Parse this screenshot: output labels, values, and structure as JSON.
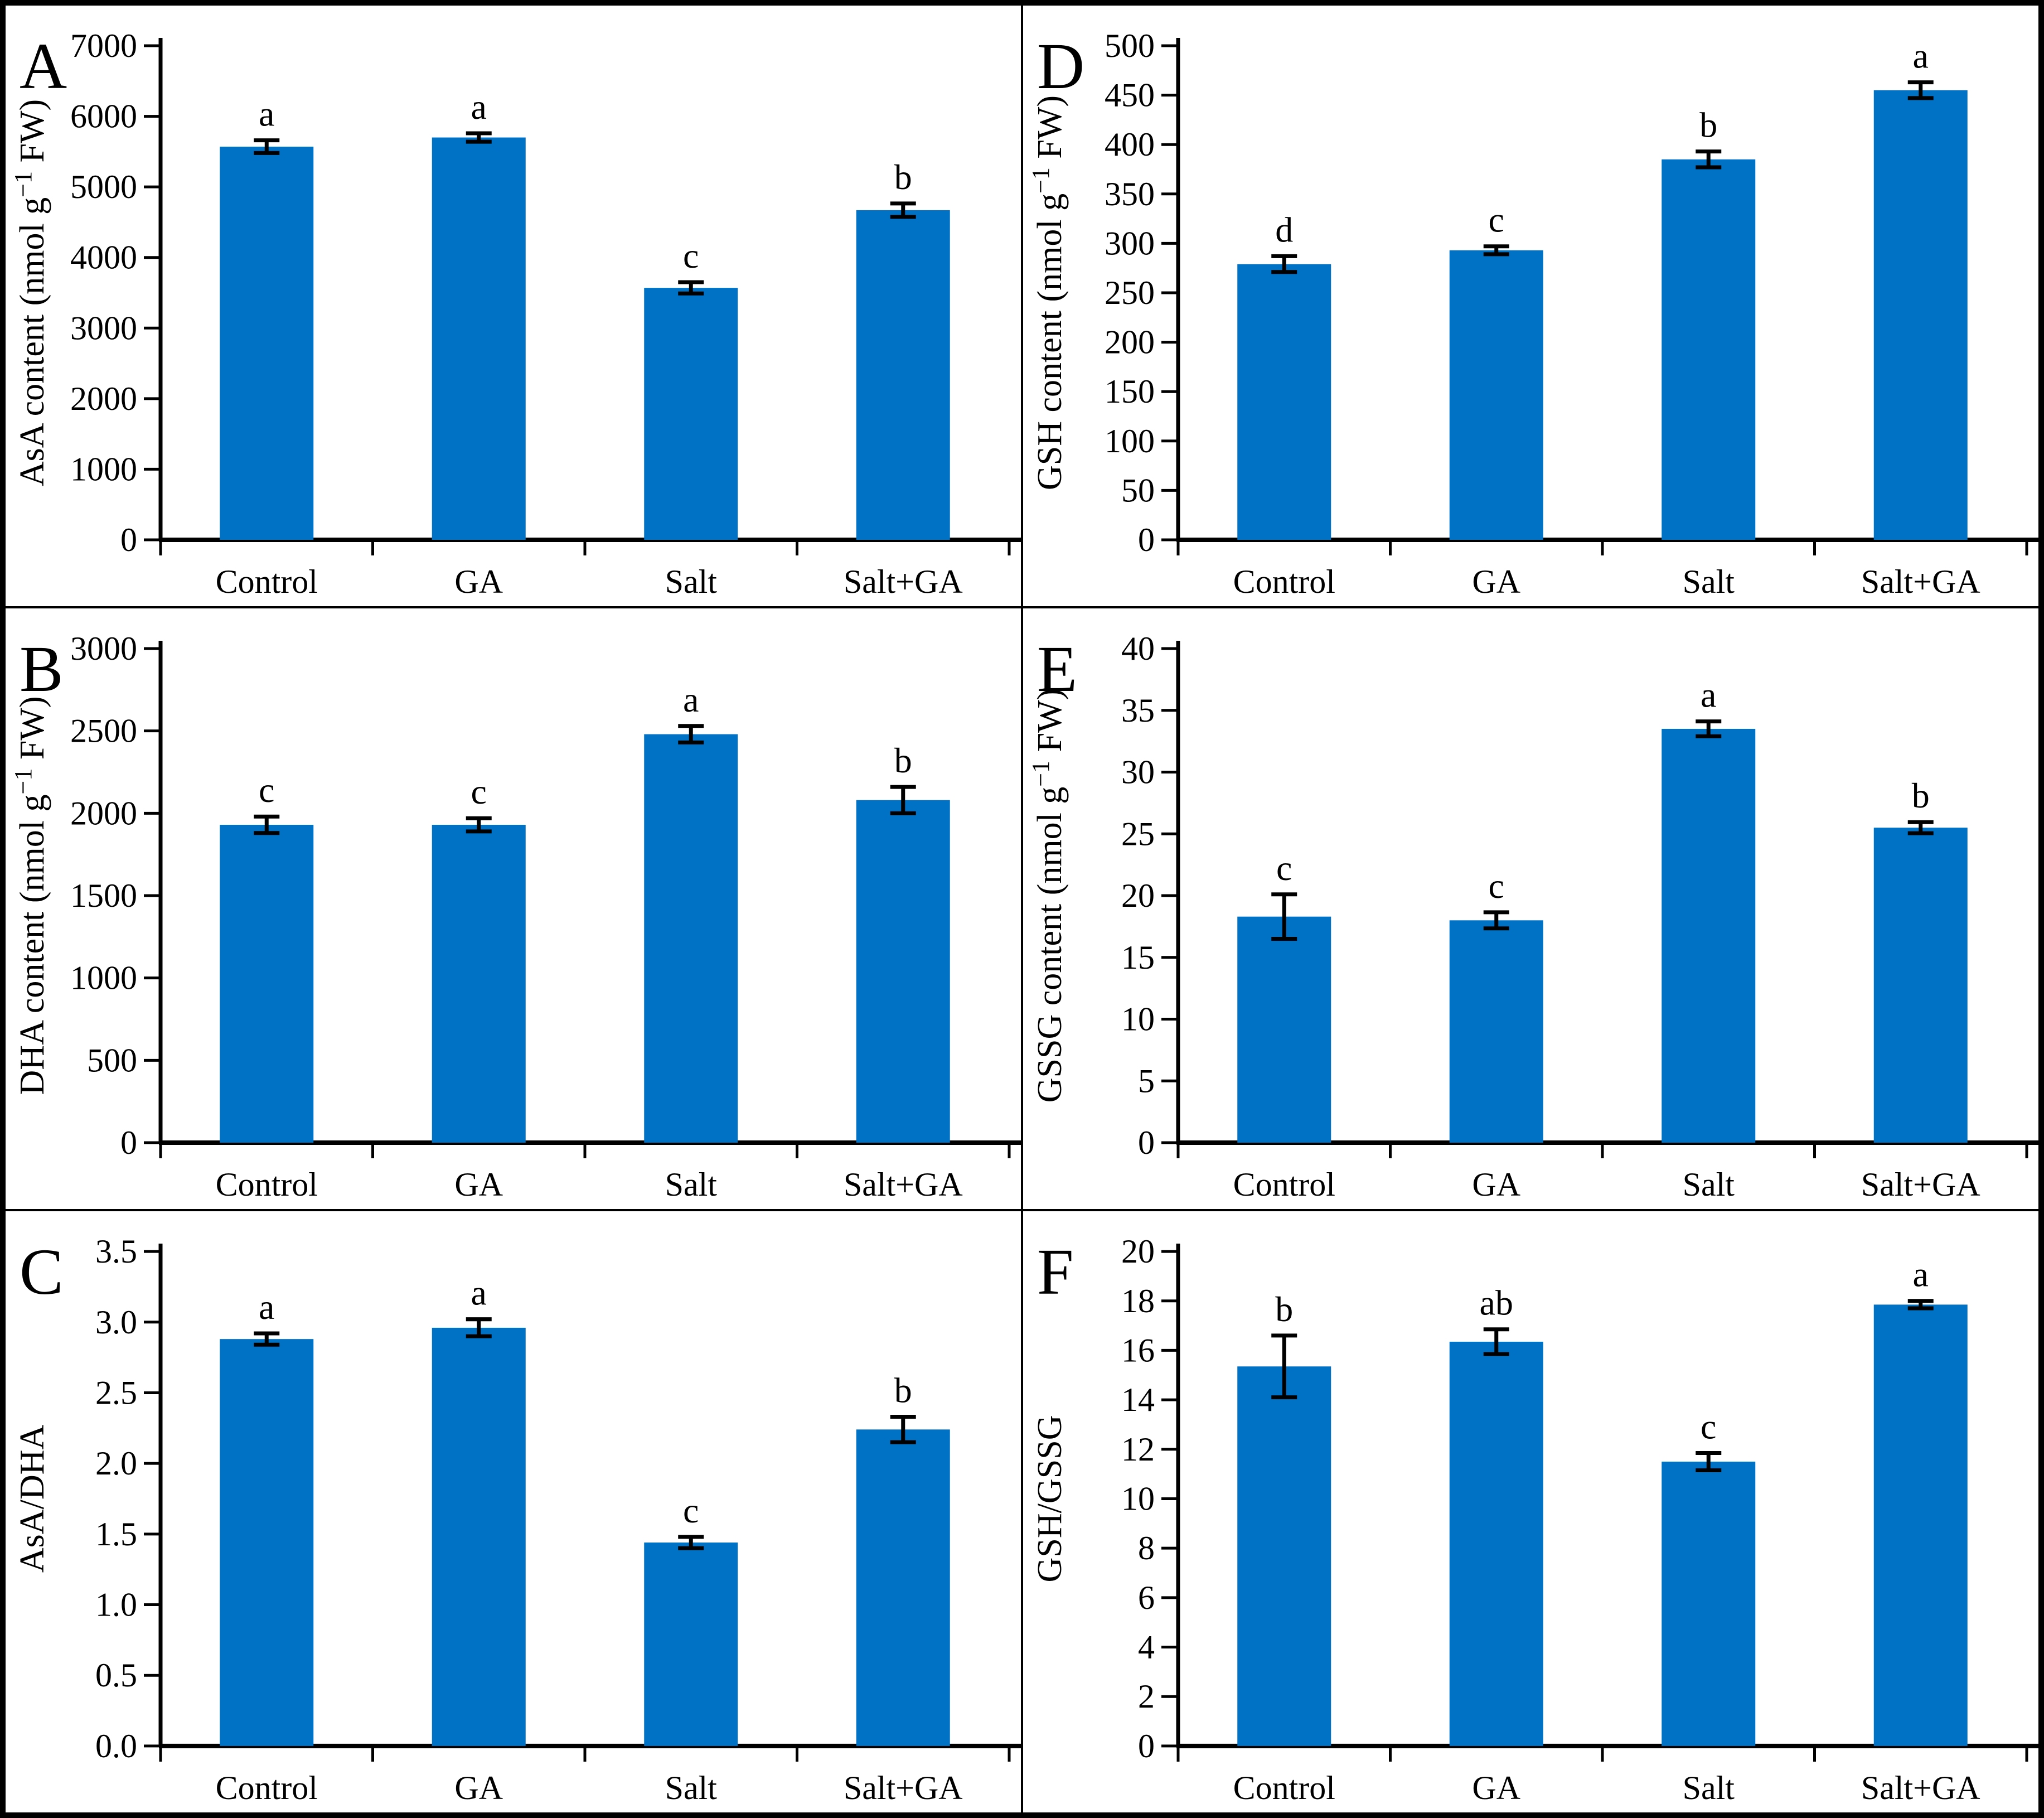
{
  "figure": {
    "background_color": "#ffffff",
    "border_color": "#000000",
    "bar_color": "#0072C6",
    "error_bar_color": "#000000",
    "categories": [
      "Control",
      "GA",
      "Salt",
      "Salt+GA"
    ]
  },
  "chart_data": [
    {
      "panel": "A",
      "type": "bar",
      "ylabel_segments": [
        {
          "text": "AsA content (nmol g"
        },
        {
          "text": "−1",
          "sup": true
        },
        {
          "text": " FW)"
        }
      ],
      "ylim": [
        0,
        7000
      ],
      "ytick_step": 1000,
      "ytick_decimals": 0,
      "grid": false,
      "categories": [
        "Control",
        "GA",
        "Salt",
        "Salt+GA"
      ],
      "values": [
        5570,
        5700,
        3570,
        4670
      ],
      "errors": [
        90,
        60,
        80,
        95
      ],
      "sig_letters": [
        "a",
        "a",
        "c",
        "b"
      ]
    },
    {
      "panel": "B",
      "type": "bar",
      "ylabel_segments": [
        {
          "text": "DHA content (nmol g"
        },
        {
          "text": "−1",
          "sup": true
        },
        {
          "text": " FW)"
        }
      ],
      "ylim": [
        0,
        3000
      ],
      "ytick_step": 500,
      "ytick_decimals": 0,
      "grid": false,
      "categories": [
        "Control",
        "GA",
        "Salt",
        "Salt+GA"
      ],
      "values": [
        1930,
        1930,
        2480,
        2080
      ],
      "errors": [
        50,
        40,
        50,
        80
      ],
      "sig_letters": [
        "c",
        "c",
        "a",
        "b"
      ]
    },
    {
      "panel": "C",
      "type": "bar",
      "ylabel_segments": [
        {
          "text": "AsA/DHA"
        }
      ],
      "ylim": [
        0,
        3.5
      ],
      "ytick_step": 0.5,
      "ytick_decimals": 1,
      "grid": false,
      "categories": [
        "Control",
        "GA",
        "Salt",
        "Salt+GA"
      ],
      "values": [
        2.88,
        2.96,
        1.44,
        2.24
      ],
      "errors": [
        0.04,
        0.06,
        0.04,
        0.09
      ],
      "sig_letters": [
        "a",
        "a",
        "c",
        "b"
      ]
    },
    {
      "panel": "D",
      "type": "bar",
      "ylabel_segments": [
        {
          "text": "GSH content (nmol g"
        },
        {
          "text": "−1",
          "sup": true
        },
        {
          "text": " FW)"
        }
      ],
      "ylim": [
        0,
        500
      ],
      "ytick_step": 50,
      "ytick_decimals": 0,
      "grid": false,
      "categories": [
        "Control",
        "GA",
        "Salt",
        "Salt+GA"
      ],
      "values": [
        279,
        293,
        385,
        455
      ],
      "errors": [
        8,
        4,
        8,
        8
      ],
      "sig_letters": [
        "d",
        "c",
        "b",
        "a"
      ]
    },
    {
      "panel": "E",
      "type": "bar",
      "ylabel_segments": [
        {
          "text": "GSSG content (nmol g"
        },
        {
          "text": "−1",
          "sup": true
        },
        {
          "text": " FW)"
        }
      ],
      "ylim": [
        0,
        40
      ],
      "ytick_step": 5,
      "ytick_decimals": 0,
      "grid": false,
      "categories": [
        "Control",
        "GA",
        "Salt",
        "Salt+GA"
      ],
      "values": [
        18.3,
        18.0,
        33.5,
        25.5
      ],
      "errors": [
        1.8,
        0.65,
        0.6,
        0.45
      ],
      "sig_letters": [
        "c",
        "c",
        "a",
        "b"
      ]
    },
    {
      "panel": "F",
      "type": "bar",
      "ylabel_segments": [
        {
          "text": "GSH/GSSG"
        }
      ],
      "ylim": [
        0,
        20
      ],
      "ytick_step": 2,
      "ytick_decimals": 0,
      "grid": false,
      "categories": [
        "Control",
        "GA",
        "Salt",
        "Salt+GA"
      ],
      "values": [
        15.35,
        16.35,
        11.5,
        17.85
      ],
      "errors": [
        1.25,
        0.5,
        0.35,
        0.15
      ],
      "sig_letters": [
        "b",
        "ab",
        "c",
        "a"
      ]
    }
  ]
}
